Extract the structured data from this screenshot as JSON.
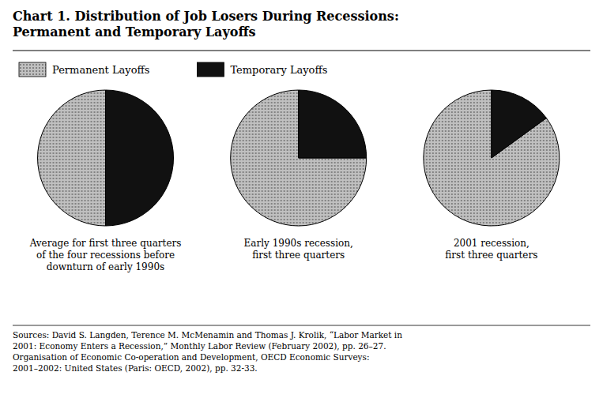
{
  "title": "Chart 1. Distribution of Job Losers During Recessions:\nPermanent and Temporary Layoffs",
  "annotations": [
    "Sources: David S. Langden, Terence M. McMenamin and Thomas J. Krolik, “Labor Market in\n2001: Economy Enters a Recession,” Monthly Labor Review (February 2002), pp. 26–27.\nOrganisation of Economic Co-operation and Development, OECD Economic Surveys:\n2001–2002: United States (Paris: OECD, 2002), pp. 32-33."
  ],
  "chart_data": [
    {
      "type": "pie",
      "title": "Average for first three quarters\nof the four recessions before\ndownturn of early 1990s",
      "categories": [
        "Permanent Layoffs",
        "Temporary Layoffs"
      ],
      "values": [
        50,
        50
      ],
      "colors": [
        "#c0c0c0",
        "#111111"
      ],
      "legend": "top"
    },
    {
      "type": "pie",
      "title": "Early 1990s recession,\nfirst three quarters",
      "categories": [
        "Permanent Layoffs",
        "Temporary Layoffs"
      ],
      "values": [
        75,
        25
      ],
      "colors": [
        "#c0c0c0",
        "#111111"
      ]
    },
    {
      "type": "pie",
      "title": "2001 recession,\nfirst three quarters",
      "categories": [
        "Permanent Layoffs",
        "Temporary Layoffs"
      ],
      "values": [
        85,
        15
      ],
      "colors": [
        "#c0c0c0",
        "#111111"
      ]
    }
  ]
}
